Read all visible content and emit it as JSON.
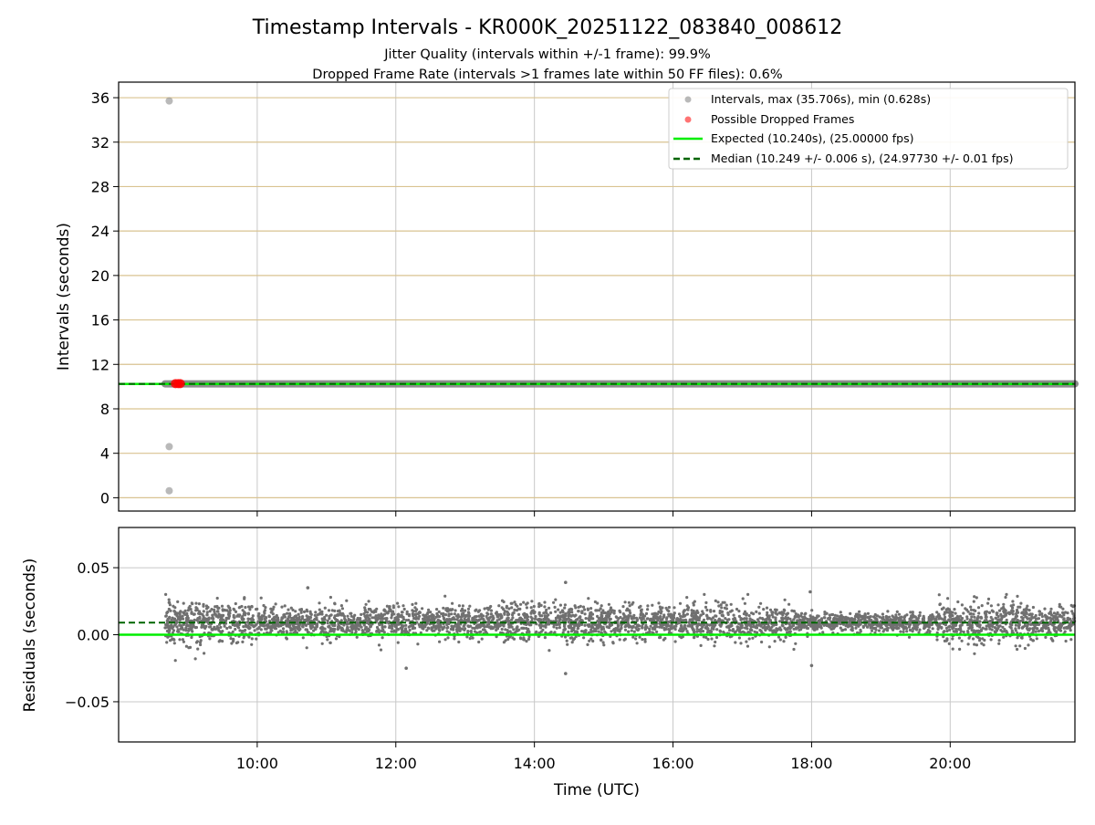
{
  "chart_data": [
    {
      "type": "scatter",
      "title": "Timestamp Intervals - KR000K_20251122_083840_008612",
      "subtitle_lines": [
        "Jitter Quality (intervals within +/-1 frame): 99.9%",
        "Dropped Frame Rate (intervals >1 frames late within 50 FF files): 0.6%"
      ],
      "xlabel": "",
      "ylabel": "Intervals (seconds)",
      "xlim_hours": [
        8.0,
        21.8
      ],
      "ylim": [
        -1.2,
        37.4
      ],
      "yticks": [
        0,
        4,
        8,
        12,
        16,
        20,
        24,
        28,
        32,
        36
      ],
      "ytick_labels": [
        "0",
        "4",
        "8",
        "12",
        "16",
        "20",
        "24",
        "28",
        "32",
        "36"
      ],
      "grid": true,
      "legend_position": "upper-right",
      "series": [
        {
          "name": "Intervals, max (35.706s), min (0.628s)",
          "color": "#808080",
          "marker": "circle",
          "band": {
            "x_start": 8.67,
            "x_end": 21.8,
            "y": 10.25
          },
          "outliers": [
            {
              "x": 8.73,
              "y": 35.706
            },
            {
              "x": 8.73,
              "y": 4.6
            },
            {
              "x": 8.73,
              "y": 0.628
            }
          ]
        },
        {
          "name": "Possible Dropped Frames",
          "color": "#ff0000",
          "marker": "circle",
          "points": [
            {
              "x": 8.82,
              "y": 10.27
            },
            {
              "x": 8.86,
              "y": 10.27
            },
            {
              "x": 8.89,
              "y": 10.27
            }
          ]
        },
        {
          "name": "Expected (10.240s), (25.00000 fps)",
          "color": "#00ee00",
          "style": "solid",
          "y": 10.24
        },
        {
          "name": "Median (10.249 +/- 0.006 s), (24.97730 +/- 0.01 fps)",
          "color": "#006400",
          "style": "dashed",
          "y": 10.249
        }
      ]
    },
    {
      "type": "scatter",
      "xlabel": "Time (UTC)",
      "ylabel": "Residuals (seconds)",
      "xlim_hours": [
        8.0,
        21.8
      ],
      "ylim": [
        -0.08,
        0.08
      ],
      "yticks": [
        -0.05,
        0.0,
        0.05
      ],
      "ytick_labels": [
        "−0.05",
        "0.00",
        "0.05"
      ],
      "xticks_hours": [
        10,
        12,
        14,
        16,
        18,
        20
      ],
      "xtick_labels": [
        "10:00",
        "12:00",
        "14:00",
        "16:00",
        "18:00",
        "20:00"
      ],
      "grid": true,
      "series": [
        {
          "name": "Residuals",
          "color": "#707070",
          "x_range": [
            8.67,
            21.8
          ],
          "center": 0.009,
          "spread": 0.006,
          "notable_points": [
            {
              "x": 8.73,
              "y": 0.024
            },
            {
              "x": 10.73,
              "y": 0.035
            },
            {
              "x": 12.15,
              "y": -0.025
            },
            {
              "x": 14.45,
              "y": 0.039
            },
            {
              "x": 14.45,
              "y": -0.029
            },
            {
              "x": 17.98,
              "y": 0.032
            },
            {
              "x": 18.0,
              "y": -0.023
            }
          ]
        },
        {
          "name": "Expected",
          "color": "#00ee00",
          "style": "solid",
          "y": 0.0
        },
        {
          "name": "Median",
          "color": "#006400",
          "style": "dashed",
          "y": 0.009
        }
      ]
    }
  ]
}
